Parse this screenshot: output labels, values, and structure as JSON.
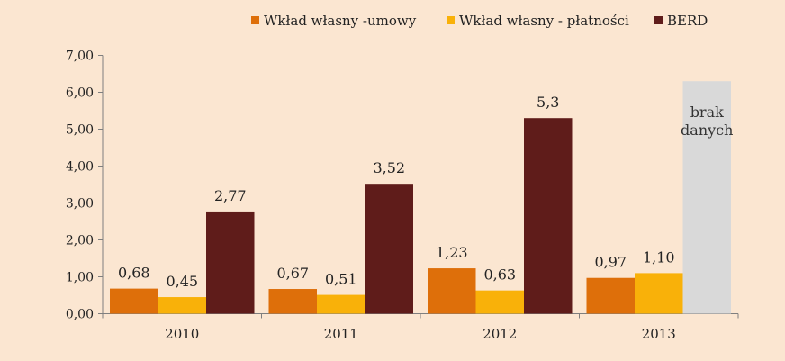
{
  "chart_data": {
    "type": "bar",
    "categories": [
      "2010",
      "2011",
      "2012",
      "2013"
    ],
    "series": [
      {
        "name": "Wkład własny -umowy",
        "color": "#de6f0a",
        "values": [
          0.68,
          0.67,
          1.23,
          0.97
        ],
        "labels": [
          "0,68",
          "0,67",
          "1,23",
          "0,97"
        ]
      },
      {
        "name": "Wkład własny - płatności",
        "color": "#f9b109",
        "values": [
          0.45,
          0.51,
          0.63,
          1.1
        ],
        "labels": [
          "0,45",
          "0,51",
          "0,63",
          "1,10"
        ]
      },
      {
        "name": "BERD",
        "color": "#5f1c1a",
        "values": [
          2.77,
          3.52,
          5.3,
          null
        ],
        "labels": [
          "2,77",
          "3,52",
          "5,3",
          ""
        ]
      }
    ],
    "ylim": [
      0,
      7
    ],
    "yticks": [
      0,
      1,
      2,
      3,
      4,
      5,
      6,
      7
    ],
    "ytick_labels": [
      "0,00",
      "1,00",
      "2,00",
      "3,00",
      "4,00",
      "5,00",
      "6,00",
      "7,00"
    ],
    "missing_note": {
      "category": "2013",
      "series": "BERD",
      "line1": "brak",
      "line2": "danych",
      "value": 6.3,
      "color": "#d9d9d9"
    },
    "legend_position": "top",
    "grid": false
  }
}
